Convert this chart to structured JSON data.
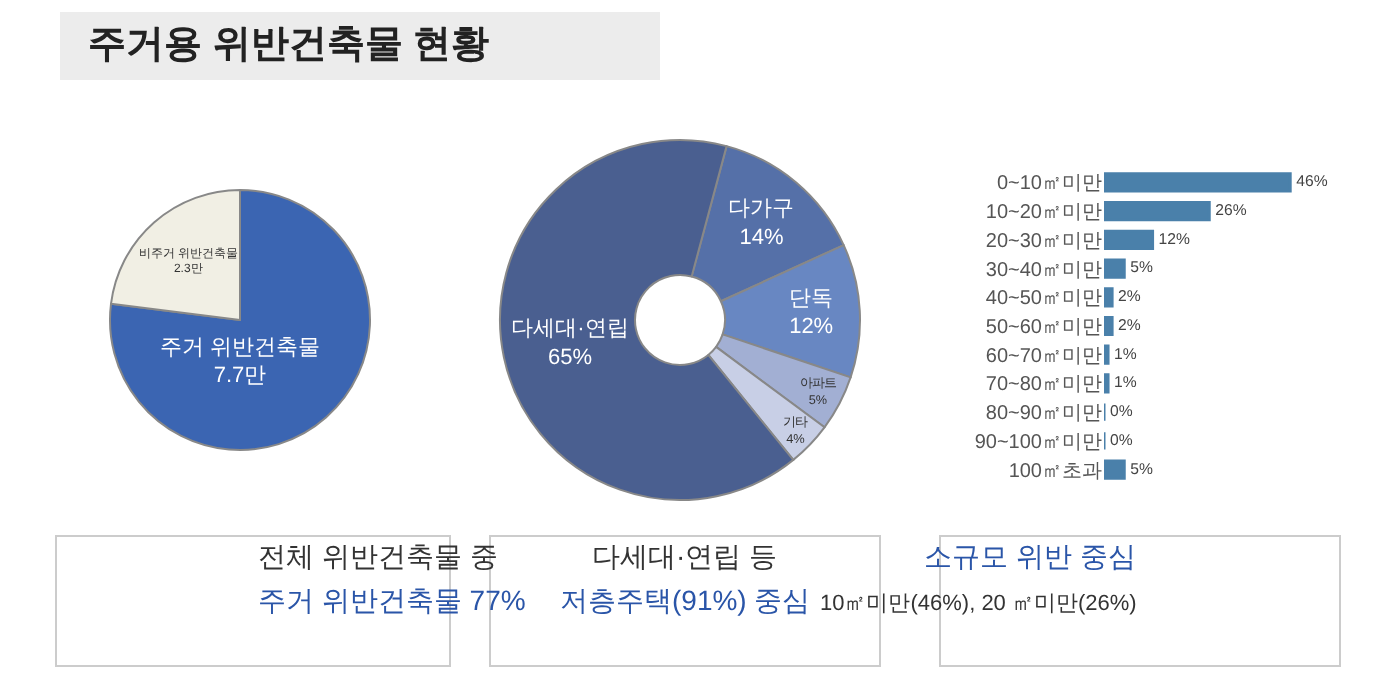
{
  "chart_data": [
    {
      "type": "pie",
      "title": "주거용 위반건축물 현황",
      "categories": [
        "주거 위반건축물",
        "비주거 위반건축물"
      ],
      "values": [
        7.7,
        2.3
      ],
      "value_labels": [
        "7.7만",
        "2.3만"
      ],
      "colors": [
        "#3b65b2",
        "#f1efe4"
      ],
      "annotations": [
        "전체 위반건축물 중",
        "주거 위반건축물 77%"
      ]
    },
    {
      "type": "donut",
      "categories": [
        "다가구",
        "단독",
        "아파트",
        "기타",
        "다세대·연립"
      ],
      "values": [
        14,
        12,
        5,
        4,
        65
      ],
      "value_labels": [
        "14%",
        "12%",
        "5%",
        "4%",
        "65%"
      ],
      "colors": [
        "#5570a8",
        "#6887c2",
        "#a2afd3",
        "#c8cfe6",
        "#4a5f90"
      ],
      "annotations": [
        "다세대·연립 등",
        "저층주택(91%) 중심"
      ]
    },
    {
      "type": "bar",
      "orientation": "horizontal",
      "categories": [
        "0~10㎡미만",
        "10~20㎡미만",
        "20~30㎡미만",
        "30~40㎡미만",
        "40~50㎡미만",
        "50~60㎡미만",
        "60~70㎡미만",
        "70~80㎡미만",
        "80~90㎡미만",
        "90~100㎡미만",
        "100㎡초과"
      ],
      "values": [
        46,
        26,
        12,
        5,
        2,
        2,
        1,
        1,
        0,
        0,
        5
      ],
      "value_labels": [
        "46%",
        "26%",
        "12%",
        "5%",
        "2%",
        "2%",
        "1%",
        "1%",
        "0%",
        "0%",
        "5%"
      ],
      "color": "#4a80aa",
      "annotations": [
        "소규모 위반 중심",
        "10㎡미만(46%), 20 ㎡미만(26%)"
      ]
    }
  ]
}
